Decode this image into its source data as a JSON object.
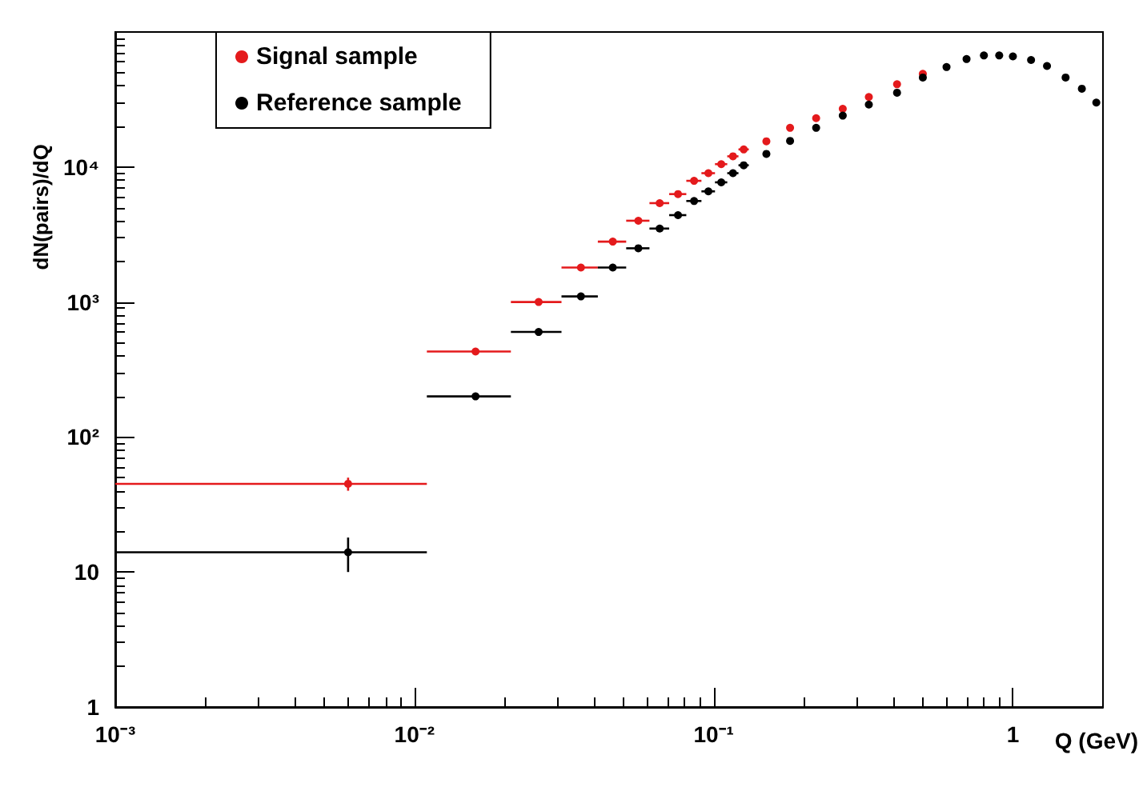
{
  "chart_data": {
    "type": "scatter",
    "xlabel": "Q (GeV)",
    "ylabel": "dN(pairs)/dQ",
    "log": "xy",
    "grid": false,
    "legend": "top left",
    "marker": "circle",
    "xlim": [
      0.001,
      2
    ],
    "ylim": [
      1,
      100000
    ],
    "xticks": [
      {
        "value": 0.001,
        "label": "10⁻³"
      },
      {
        "value": 0.01,
        "label": "10⁻²"
      },
      {
        "value": 0.1,
        "label": "10⁻¹"
      },
      1
    ],
    "yticks": [
      1,
      10,
      {
        "value": 100,
        "label": "10²"
      },
      {
        "value": 1000,
        "label": "10³"
      },
      {
        "value": 10000,
        "label": "10⁴"
      }
    ],
    "x": [
      0.006,
      0.016,
      0.026,
      0.036,
      0.046,
      0.056,
      0.066,
      0.076,
      0.086,
      0.096,
      0.106,
      0.116,
      0.126,
      0.15,
      0.18,
      0.22,
      0.27,
      0.33,
      0.41,
      0.5,
      0.6,
      0.7,
      0.8,
      0.9,
      1.0,
      1.15,
      1.3,
      1.5,
      1.7,
      1.9
    ],
    "series": [
      {
        "name": "Signal sample",
        "color": "#e41a1c",
        "values": [
          45,
          430,
          1000,
          1800,
          2800,
          4000,
          5400,
          6300,
          7900,
          9000,
          10500,
          12000,
          13500,
          15500,
          19500,
          23000,
          27000,
          33000,
          41000,
          49000,
          null,
          null,
          null,
          null,
          null,
          null,
          null,
          null,
          null,
          null
        ],
        "errors": [
          5,
          null,
          null,
          null,
          null,
          null,
          null,
          null,
          null,
          null,
          null,
          null,
          null,
          null,
          null,
          null,
          null,
          null,
          null,
          null,
          null,
          null,
          null,
          null,
          null,
          null,
          null,
          null,
          null,
          null
        ],
        "xerrors": [
          [
            0.001,
            0.011
          ],
          [
            0.011,
            0.021
          ],
          0.005,
          0.005,
          0.005,
          0.005,
          0.005,
          0.005,
          0.005,
          0.005,
          0.005,
          0.005,
          0.005,
          null,
          null,
          null,
          null,
          null,
          null,
          null,
          null,
          null,
          null,
          null,
          null,
          null,
          null,
          null,
          null,
          null
        ]
      },
      {
        "name": "Reference sample",
        "color": "#000000",
        "values": [
          14,
          200,
          600,
          1100,
          1800,
          2500,
          3500,
          4400,
          5600,
          6600,
          7700,
          9000,
          10300,
          12500,
          15600,
          19500,
          24000,
          29000,
          35500,
          46000,
          55000,
          63000,
          67000,
          67000,
          66000,
          62000,
          56000,
          46000,
          38000,
          30000
        ],
        "errors": [
          4,
          null,
          null,
          null,
          null,
          null,
          null,
          null,
          null,
          null,
          null,
          null,
          null,
          null,
          null,
          null,
          null,
          null,
          null,
          null,
          null,
          null,
          null,
          null,
          null,
          null,
          null,
          null,
          null,
          null
        ],
        "xerrors": [
          [
            0.001,
            0.011
          ],
          [
            0.011,
            0.021
          ],
          0.005,
          0.005,
          0.005,
          0.005,
          0.005,
          0.005,
          0.005,
          0.005,
          0.005,
          0.005,
          0.005,
          null,
          null,
          null,
          null,
          null,
          null,
          null,
          null,
          null,
          null,
          null,
          null,
          null,
          null,
          null,
          null,
          null
        ]
      }
    ]
  }
}
